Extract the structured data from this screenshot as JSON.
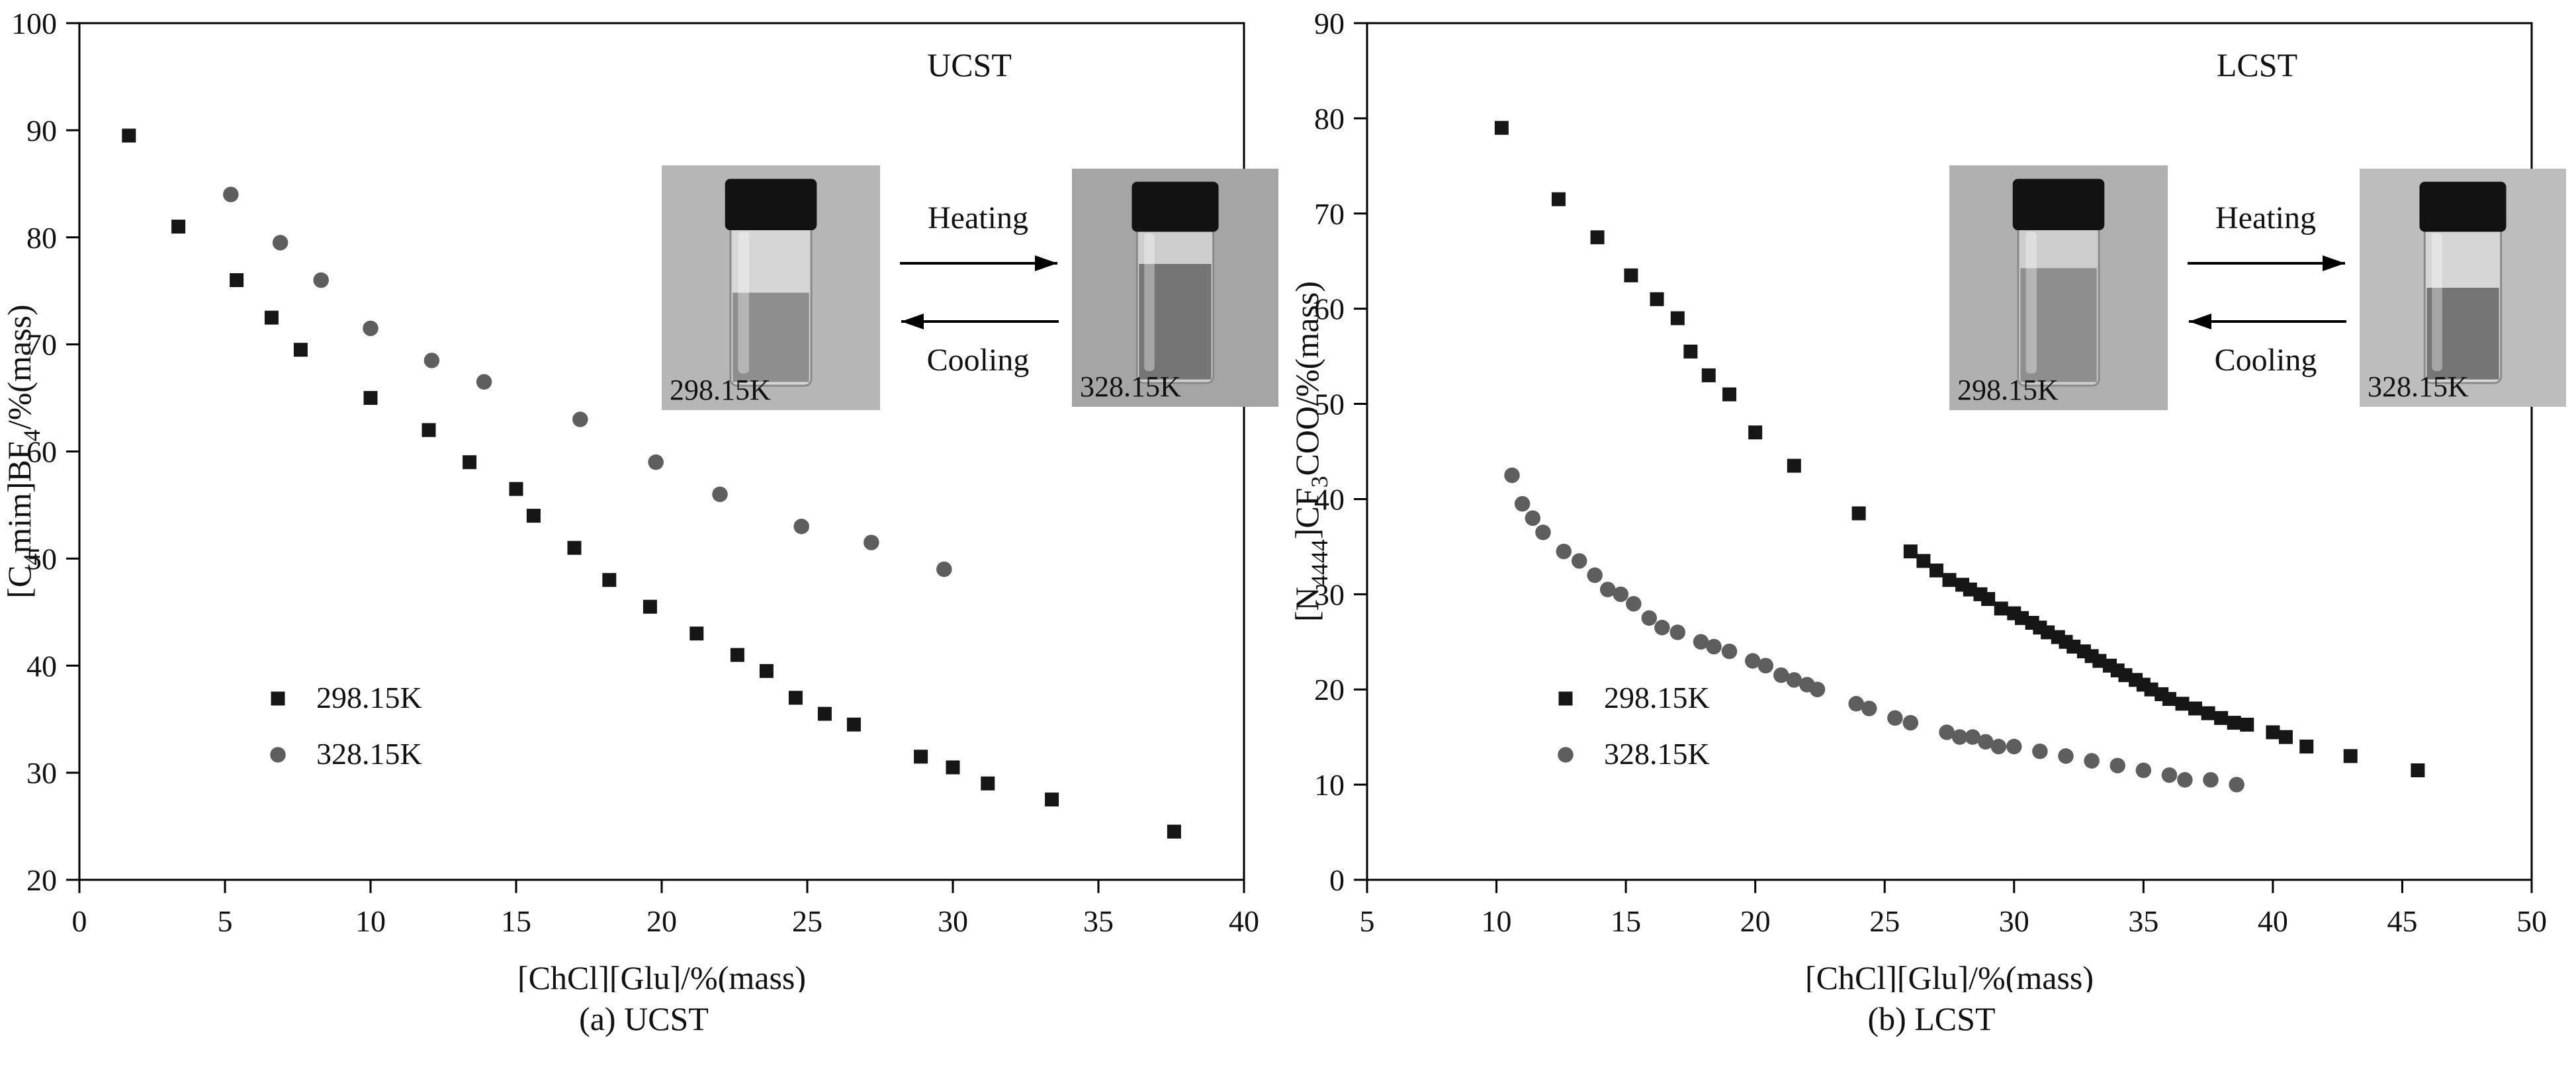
{
  "colors": {
    "series1": "#161616",
    "series2": "#5e5e5e",
    "frame": "#000000",
    "photo_bg_a1": "#b6b6b6",
    "photo_bg_a2": "#a5a5a5",
    "photo_bg_b1": "#b0b0b0",
    "photo_bg_b2": "#bdbdbd",
    "glass": "#cdcdcd",
    "liquid_dark": "#757575",
    "liquid_mid": "#8e8e8e",
    "upper_clear": "#d6d6d6",
    "cap": "#121212"
  },
  "chart_data": [
    {
      "type": "scatter",
      "panel": "a",
      "caption": "(a) UCST",
      "xlabel": "[ChCl][Glu]/%(mass)",
      "ylabel_parts": [
        {
          "t": "[C"
        },
        {
          "t": "4",
          "sub": true
        },
        {
          "t": "mim]BF"
        },
        {
          "t": "4",
          "sub": true
        },
        {
          "t": "/%(mass)"
        }
      ],
      "xlim": [
        0,
        40
      ],
      "ylim": [
        20,
        100
      ],
      "xticks": [
        0,
        5,
        10,
        15,
        20,
        25,
        30,
        35,
        40
      ],
      "yticks": [
        20,
        30,
        40,
        50,
        60,
        70,
        80,
        90,
        100
      ],
      "grid": false,
      "legend_pos": "inside-lower-left",
      "inset": {
        "label": "UCST",
        "heating": "Heating",
        "cooling": "Cooling",
        "vial_left_label": "298.15K",
        "vial_right_label": "328.15K"
      },
      "series": [
        {
          "name": "298.15K",
          "marker": "square",
          "points": [
            [
              1.7,
              89.5
            ],
            [
              3.4,
              81
            ],
            [
              5.4,
              76
            ],
            [
              6.6,
              72.5
            ],
            [
              7.6,
              69.5
            ],
            [
              10,
              65
            ],
            [
              12,
              62
            ],
            [
              13.4,
              59
            ],
            [
              15,
              56.5
            ],
            [
              15.6,
              54
            ],
            [
              17,
              51
            ],
            [
              18.2,
              48
            ],
            [
              19.6,
              45.5
            ],
            [
              21.2,
              43
            ],
            [
              22.6,
              41
            ],
            [
              23.6,
              39.5
            ],
            [
              24.6,
              37
            ],
            [
              25.6,
              35.5
            ],
            [
              26.6,
              34.5
            ],
            [
              28.9,
              31.5
            ],
            [
              30,
              30.5
            ],
            [
              31.2,
              29
            ],
            [
              33.4,
              27.5
            ],
            [
              37.6,
              24.5
            ]
          ]
        },
        {
          "name": "328.15K",
          "marker": "circle",
          "points": [
            [
              5.2,
              84
            ],
            [
              6.9,
              79.5
            ],
            [
              8.3,
              76
            ],
            [
              10,
              71.5
            ],
            [
              12.1,
              68.5
            ],
            [
              13.9,
              66.5
            ],
            [
              17.2,
              63
            ],
            [
              19.8,
              59
            ],
            [
              22,
              56
            ],
            [
              24.8,
              53
            ],
            [
              27.2,
              51.5
            ],
            [
              29.7,
              49
            ]
          ]
        }
      ]
    },
    {
      "type": "scatter",
      "panel": "b",
      "caption": "(b) LCST",
      "xlabel": "[ChCl][Glu]/%(mass)",
      "ylabel_parts": [
        {
          "t": "[N"
        },
        {
          "t": "4444",
          "sub": true
        },
        {
          "t": "]CF"
        },
        {
          "t": "3",
          "sub": true
        },
        {
          "t": "COO/%(mass)"
        }
      ],
      "xlim": [
        5,
        50
      ],
      "ylim": [
        0,
        90
      ],
      "xticks": [
        5,
        10,
        15,
        20,
        25,
        30,
        35,
        40,
        45,
        50
      ],
      "yticks": [
        0,
        10,
        20,
        30,
        40,
        50,
        60,
        70,
        80,
        90
      ],
      "grid": false,
      "legend_pos": "inside-lower-left",
      "inset": {
        "label": "LCST",
        "heating": "Heating",
        "cooling": "Cooling",
        "vial_left_label": "298.15K",
        "vial_right_label": "328.15K"
      },
      "series": [
        {
          "name": "298.15K",
          "marker": "square",
          "points": [
            [
              10.2,
              79
            ],
            [
              12.4,
              71.5
            ],
            [
              13.9,
              67.5
            ],
            [
              15.2,
              63.5
            ],
            [
              16.2,
              61
            ],
            [
              17,
              59
            ],
            [
              17.5,
              55.5
            ],
            [
              18.2,
              53
            ],
            [
              19,
              51
            ],
            [
              20,
              47
            ],
            [
              21.5,
              43.5
            ],
            [
              24,
              38.5
            ],
            [
              26,
              34.5
            ],
            [
              26.5,
              33.5
            ],
            [
              27,
              32.5
            ],
            [
              27.5,
              31.5
            ],
            [
              28,
              31
            ],
            [
              28.3,
              30.5
            ],
            [
              28.7,
              30
            ],
            [
              29,
              29.5
            ],
            [
              29.5,
              28.5
            ],
            [
              30,
              28
            ],
            [
              30.3,
              27.5
            ],
            [
              30.7,
              27
            ],
            [
              31,
              26.5
            ],
            [
              31.3,
              26
            ],
            [
              31.7,
              25.5
            ],
            [
              32,
              25
            ],
            [
              32.3,
              24.5
            ],
            [
              32.7,
              24
            ],
            [
              33,
              23.5
            ],
            [
              33.3,
              23
            ],
            [
              33.7,
              22.5
            ],
            [
              34,
              22
            ],
            [
              34.3,
              21.5
            ],
            [
              34.7,
              21
            ],
            [
              35,
              20.5
            ],
            [
              35.3,
              20
            ],
            [
              35.7,
              19.5
            ],
            [
              36,
              19
            ],
            [
              36.5,
              18.5
            ],
            [
              37,
              18
            ],
            [
              37.5,
              17.5
            ],
            [
              38,
              17
            ],
            [
              38.5,
              16.5
            ],
            [
              39,
              16.3
            ],
            [
              40,
              15.5
            ],
            [
              40.5,
              15
            ],
            [
              41.3,
              14
            ],
            [
              43,
              13
            ],
            [
              45.6,
              11.5
            ]
          ]
        },
        {
          "name": "328.15K",
          "marker": "circle",
          "points": [
            [
              10.6,
              42.5
            ],
            [
              11,
              39.5
            ],
            [
              11.4,
              38
            ],
            [
              11.8,
              36.5
            ],
            [
              12.6,
              34.5
            ],
            [
              13.2,
              33.5
            ],
            [
              13.8,
              32
            ],
            [
              14.3,
              30.5
            ],
            [
              14.8,
              30
            ],
            [
              15.3,
              29
            ],
            [
              15.9,
              27.5
            ],
            [
              16.4,
              26.5
            ],
            [
              17,
              26
            ],
            [
              17.9,
              25
            ],
            [
              18.4,
              24.5
            ],
            [
              19,
              24
            ],
            [
              19.9,
              23
            ],
            [
              20.4,
              22.5
            ],
            [
              21,
              21.5
            ],
            [
              21.5,
              21
            ],
            [
              22,
              20.5
            ],
            [
              22.4,
              20
            ],
            [
              23.9,
              18.5
            ],
            [
              24.4,
              18
            ],
            [
              25.4,
              17
            ],
            [
              26,
              16.5
            ],
            [
              27.4,
              15.5
            ],
            [
              27.9,
              15
            ],
            [
              28.4,
              15
            ],
            [
              28.9,
              14.5
            ],
            [
              29.4,
              14
            ],
            [
              30,
              14
            ],
            [
              31,
              13.5
            ],
            [
              32,
              13
            ],
            [
              33,
              12.5
            ],
            [
              34,
              12
            ],
            [
              35,
              11.5
            ],
            [
              36,
              11
            ],
            [
              36.6,
              10.5
            ],
            [
              37.6,
              10.5
            ],
            [
              38.6,
              10
            ]
          ]
        }
      ]
    }
  ]
}
